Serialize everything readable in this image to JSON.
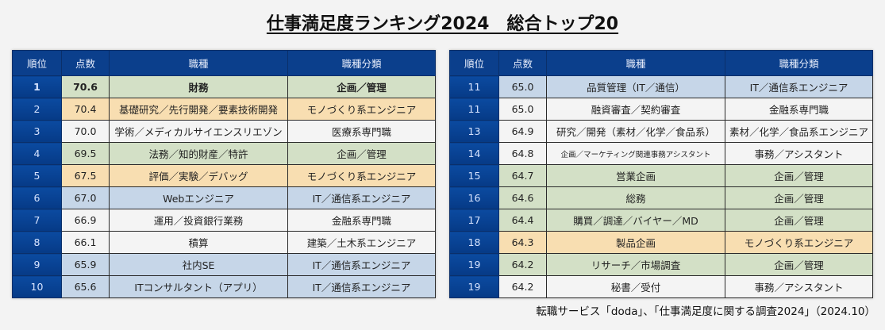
{
  "title": "仕事満足度ランキング2024　総合トップ20",
  "headers": {
    "rank": "順位",
    "score": "点数",
    "job": "職種",
    "category": "職種分類"
  },
  "colors": {
    "header_bg": "#0b3f8c",
    "green": "#d3e0c6",
    "orange": "#f8deb1",
    "blue": "#c6d6e8",
    "white": "#f4f4f4"
  },
  "left_rows": [
    {
      "rank": "1",
      "score": "70.6",
      "job": "財務",
      "category": "企画／管理",
      "color": "green"
    },
    {
      "rank": "2",
      "score": "70.4",
      "job": "基礎研究／先行開発／要素技術開発",
      "category": "モノづくり系エンジニア",
      "color": "orange"
    },
    {
      "rank": "3",
      "score": "70.0",
      "job": "学術／メディカルサイエンスリエゾン",
      "category": "医療系専門職",
      "color": "white"
    },
    {
      "rank": "4",
      "score": "69.5",
      "job": "法務／知的財産／特許",
      "category": "企画／管理",
      "color": "green"
    },
    {
      "rank": "5",
      "score": "67.5",
      "job": "評価／実験／デバッグ",
      "category": "モノづくり系エンジニア",
      "color": "orange"
    },
    {
      "rank": "6",
      "score": "67.0",
      "job": "Webエンジニア",
      "category": "IT／通信系エンジニア",
      "color": "blue"
    },
    {
      "rank": "7",
      "score": "66.9",
      "job": "運用／投資銀行業務",
      "category": "金融系専門職",
      "color": "white"
    },
    {
      "rank": "8",
      "score": "66.1",
      "job": "積算",
      "category": "建築／土木系エンジニア",
      "color": "white"
    },
    {
      "rank": "9",
      "score": "65.9",
      "job": "社内SE",
      "category": "IT／通信系エンジニア",
      "color": "blue"
    },
    {
      "rank": "10",
      "score": "65.6",
      "job": "ITコンサルタント（アプリ）",
      "category": "IT／通信系エンジニア",
      "color": "blue"
    }
  ],
  "right_rows": [
    {
      "rank": "11",
      "score": "65.0",
      "job": "品質管理（IT／通信）",
      "category": "IT／通信系エンジニア",
      "color": "blue"
    },
    {
      "rank": "11",
      "score": "65.0",
      "job": "融資審査／契約審査",
      "category": "金融系専門職",
      "color": "white"
    },
    {
      "rank": "13",
      "score": "64.9",
      "job": "研究／開発（素材／化学／食品系）",
      "category": "素材／化学／食品系エンジニア",
      "color": "white"
    },
    {
      "rank": "14",
      "score": "64.8",
      "job": "企画／マーケティング関連事務アシスタント",
      "category": "事務／アシスタント",
      "color": "white"
    },
    {
      "rank": "15",
      "score": "64.7",
      "job": "営業企画",
      "category": "企画／管理",
      "color": "green"
    },
    {
      "rank": "16",
      "score": "64.6",
      "job": "総務",
      "category": "企画／管理",
      "color": "green"
    },
    {
      "rank": "17",
      "score": "64.4",
      "job": "購買／調達／バイヤー／MD",
      "category": "企画／管理",
      "color": "green"
    },
    {
      "rank": "18",
      "score": "64.3",
      "job": "製品企画",
      "category": "モノづくり系エンジニア",
      "color": "orange"
    },
    {
      "rank": "19",
      "score": "64.2",
      "job": "リサーチ／市場調査",
      "category": "企画／管理",
      "color": "green"
    },
    {
      "rank": "19",
      "score": "64.2",
      "job": "秘書／受付",
      "category": "事務／アシスタント",
      "color": "white"
    }
  ],
  "source": "転職サービス「doda」、「仕事満足度に関する調査2024」（2024.10）",
  "chart_data": {
    "type": "table",
    "title": "仕事満足度ランキング2024　総合トップ20",
    "columns": [
      "順位",
      "点数",
      "職種",
      "職種分類"
    ],
    "rows": [
      [
        1,
        70.6,
        "財務",
        "企画／管理"
      ],
      [
        2,
        70.4,
        "基礎研究／先行開発／要素技術開発",
        "モノづくり系エンジニア"
      ],
      [
        3,
        70.0,
        "学術／メディカルサイエンスリエゾン",
        "医療系専門職"
      ],
      [
        4,
        69.5,
        "法務／知的財産／特許",
        "企画／管理"
      ],
      [
        5,
        67.5,
        "評価／実験／デバッグ",
        "モノづくり系エンジニア"
      ],
      [
        6,
        67.0,
        "Webエンジニア",
        "IT／通信系エンジニア"
      ],
      [
        7,
        66.9,
        "運用／投資銀行業務",
        "金融系専門職"
      ],
      [
        8,
        66.1,
        "積算",
        "建築／土木系エンジニア"
      ],
      [
        9,
        65.9,
        "社内SE",
        "IT／通信系エンジニア"
      ],
      [
        10,
        65.6,
        "ITコンサルタント（アプリ）",
        "IT／通信系エンジニア"
      ],
      [
        11,
        65.0,
        "品質管理（IT／通信）",
        "IT／通信系エンジニア"
      ],
      [
        11,
        65.0,
        "融資審査／契約審査",
        "金融系専門職"
      ],
      [
        13,
        64.9,
        "研究／開発（素材／化学／食品系）",
        "素材／化学／食品系エンジニア"
      ],
      [
        14,
        64.8,
        "企画／マーケティング関連事務アシスタント",
        "事務／アシスタント"
      ],
      [
        15,
        64.7,
        "営業企画",
        "企画／管理"
      ],
      [
        16,
        64.6,
        "総務",
        "企画／管理"
      ],
      [
        17,
        64.4,
        "購買／調達／バイヤー／MD",
        "企画／管理"
      ],
      [
        18,
        64.3,
        "製品企画",
        "モノづくり系エンジニア"
      ],
      [
        19,
        64.2,
        "リサーチ／市場調査",
        "企画／管理"
      ],
      [
        19,
        64.2,
        "秘書／受付",
        "事務／アシスタント"
      ]
    ],
    "annotation": "転職サービス「doda」、「仕事満足度に関する調査2024」（2024.10）"
  }
}
